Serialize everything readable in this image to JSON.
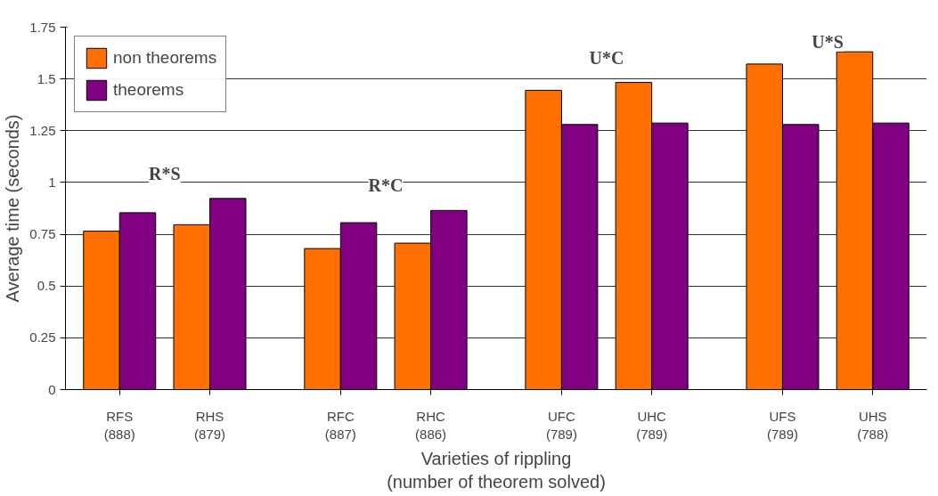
{
  "chart_data": {
    "type": "bar",
    "xlabel": "Varieties of rippling\n(number of theorem solved)",
    "ylabel": "Average time (seconds)",
    "categories": [
      "RFS\n(888)",
      "RHS\n(879)",
      "RFC\n(887)",
      "RHC\n(886)",
      "UFC\n(789)",
      "UHC\n(789)",
      "UFS\n(789)",
      "UHS\n(788)"
    ],
    "series": [
      {
        "name": "non theorems",
        "color": "#ff7000",
        "values": [
          0.765,
          0.796,
          0.681,
          0.707,
          1.445,
          1.483,
          1.572,
          1.631
        ]
      },
      {
        "name": "theorems",
        "color": "#800080",
        "values": [
          0.854,
          0.923,
          0.806,
          0.865,
          1.28,
          1.287,
          1.28,
          1.287
        ]
      }
    ],
    "annotations": [
      "R*S",
      "R*C",
      "U*C",
      "U*S"
    ],
    "ylim": [
      0,
      1.75
    ],
    "yticks": [
      0,
      0.25,
      0.5,
      0.75,
      1,
      1.25,
      1.5,
      1.75
    ],
    "grid": "y",
    "legend": "top left"
  }
}
